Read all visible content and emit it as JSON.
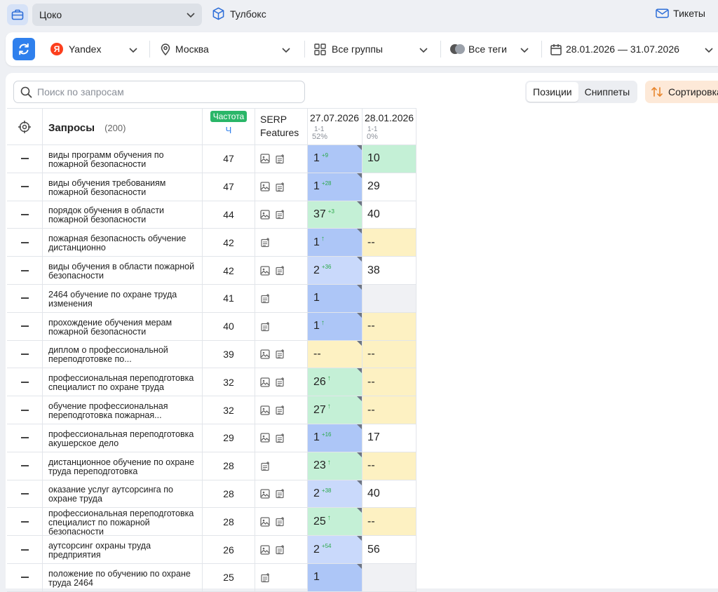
{
  "topbar": {
    "project": "Цоко",
    "toolbox": "Тулбокс",
    "tickets": "Тикеты"
  },
  "filters": {
    "engine": "Yandex",
    "region": "Москва",
    "groups": "Все группы",
    "tags": "Все теги",
    "dates": "28.01.2026 — 31.07.2026"
  },
  "search": {
    "placeholder": "Поиск по запросам"
  },
  "view_tabs": {
    "positions": "Позиции",
    "snippets": "Сниппеты"
  },
  "sort_label": "Сортировка",
  "table": {
    "queries_header": "Запросы",
    "queries_count": "(200)",
    "freq_label": "Частота",
    "freq_sub": "Ч",
    "serp_label": "SERP Features",
    "date1": {
      "date": "27.07.2026",
      "sub1": "1-1",
      "sub2": "52%"
    },
    "date2": {
      "date": "28.01.2026",
      "sub1": "1-1",
      "sub2": "0%"
    },
    "rows": [
      {
        "query": "виды программ обучения по пожарной безопасности",
        "freq": "47",
        "serp": [
          "image-icon",
          "snippet-icon"
        ],
        "p1": "1",
        "d1": "+9",
        "a1": "",
        "c1": "blue",
        "p2": "10",
        "c2": "green"
      },
      {
        "query": "виды обучения требованиям пожарной безопасности",
        "freq": "47",
        "serp": [
          "image-icon",
          "snippet-icon"
        ],
        "p1": "1",
        "d1": "+28",
        "a1": "",
        "c1": "blue",
        "p2": "29",
        "c2": "white"
      },
      {
        "query": "порядок обучения в области пожарной безопасности",
        "freq": "44",
        "serp": [
          "image-icon",
          "snippet-icon"
        ],
        "p1": "37",
        "d1": "+3",
        "a1": "",
        "c1": "green",
        "p2": "40",
        "c2": "white"
      },
      {
        "query": "пожарная безопасность обучение дистанционно",
        "freq": "42",
        "serp": [
          "snippet-icon"
        ],
        "p1": "1",
        "d1": "",
        "a1": "↑",
        "c1": "blue",
        "p2": "--",
        "c2": "yellow"
      },
      {
        "query": "виды обучения в области пожарной безопасности",
        "freq": "42",
        "serp": [
          "image-icon",
          "snippet-icon"
        ],
        "p1": "2",
        "d1": "+36",
        "a1": "",
        "c1": "lblue",
        "p2": "38",
        "c2": "white"
      },
      {
        "query": "2464 обучение по охране труда изменения",
        "freq": "41",
        "serp": [
          "snippet-icon"
        ],
        "p1": "1",
        "d1": "",
        "a1": "",
        "c1": "blue",
        "p2": "",
        "c2": "gray"
      },
      {
        "query": "прохождение обучения мерам пожарной безопасности",
        "freq": "40",
        "serp": [
          "snippet-icon"
        ],
        "p1": "1",
        "d1": "",
        "a1": "↑",
        "c1": "blue",
        "p2": "--",
        "c2": "yellow"
      },
      {
        "query": "диплом о профессиональной переподготовке по...",
        "freq": "39",
        "serp": [
          "image-icon",
          "snippet-icon"
        ],
        "p1": "--",
        "d1": "",
        "a1": "",
        "c1": "yellow",
        "p2": "--",
        "c2": "yellow"
      },
      {
        "query": "профессиональная переподготовка специалист по охране труда",
        "freq": "32",
        "serp": [
          "image-icon",
          "snippet-icon"
        ],
        "p1": "26",
        "d1": "",
        "a1": "↑",
        "c1": "green",
        "p2": "--",
        "c2": "yellow"
      },
      {
        "query": "обучение профессиональная переподготовка пожарная...",
        "freq": "32",
        "serp": [
          "image-icon",
          "snippet-icon"
        ],
        "p1": "27",
        "d1": "",
        "a1": "↑",
        "c1": "green",
        "p2": "--",
        "c2": "yellow"
      },
      {
        "query": "профессиональная переподготовка акушерское дело",
        "freq": "29",
        "serp": [
          "image-icon",
          "snippet-icon"
        ],
        "p1": "1",
        "d1": "+16",
        "a1": "",
        "c1": "blue",
        "p2": "17",
        "c2": "white"
      },
      {
        "query": "дистанционное обучение по охране труда переподготовка",
        "freq": "28",
        "serp": [
          "snippet-icon"
        ],
        "p1": "23",
        "d1": "",
        "a1": "↑",
        "c1": "green",
        "p2": "--",
        "c2": "yellow"
      },
      {
        "query": "оказание услуг аутсорсинга по охране труда",
        "freq": "28",
        "serp": [
          "image-icon",
          "snippet-icon"
        ],
        "p1": "2",
        "d1": "+38",
        "a1": "",
        "c1": "lblue",
        "p2": "40",
        "c2": "white"
      },
      {
        "query": "профессиональная переподготовка специалист по пожарной безопасности",
        "freq": "28",
        "serp": [
          "image-icon",
          "snippet-icon"
        ],
        "p1": "25",
        "d1": "",
        "a1": "↑",
        "c1": "green",
        "p2": "--",
        "c2": "yellow"
      },
      {
        "query": "аутсорсинг охраны труда предприятия",
        "freq": "26",
        "serp": [
          "image-icon",
          "snippet-icon"
        ],
        "p1": "2",
        "d1": "+54",
        "a1": "",
        "c1": "lblue",
        "p2": "56",
        "c2": "white"
      },
      {
        "query": "положение по обучению по охране труда 2464",
        "freq": "25",
        "serp": [
          "snippet-icon"
        ],
        "p1": "1",
        "d1": "",
        "a1": "",
        "c1": "blue",
        "p2": "",
        "c2": "gray"
      }
    ]
  }
}
